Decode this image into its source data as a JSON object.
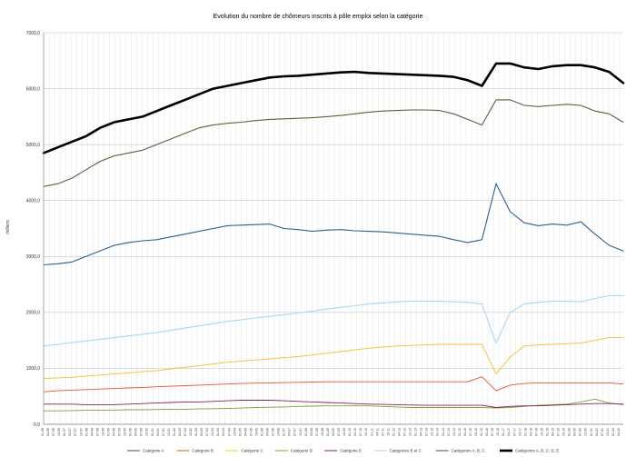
{
  "chart_data": {
    "type": "line",
    "title": "Evolution du nombre de chômeurs inscrits à pôle emploi selon la catégorie",
    "ylabel": "milliers",
    "xlabel": "",
    "ylim": [
      0,
      7000
    ],
    "yticks": [
      "0,0",
      "1000,0",
      "2000,0",
      "3000,0",
      "4000,0",
      "5000,0",
      "6000,0",
      "7000,0"
    ],
    "grid": true,
    "legend_position": "bottom",
    "x_start": "1996-01",
    "x_end": "2022-06",
    "series": [
      {
        "name": "Catégorie A",
        "color": "#2c5e91",
        "width": 1.1,
        "values": [
          2850,
          2870,
          2900,
          3000,
          3100,
          3200,
          3250,
          3280,
          3300,
          3350,
          3400,
          3450,
          3500,
          3550,
          3560,
          3570,
          3580,
          3500,
          3480,
          3450,
          3470,
          3480,
          3460,
          3450,
          3440,
          3420,
          3400,
          3380,
          3360,
          3300,
          3250,
          3300,
          4300,
          3800,
          3600,
          3550,
          3580,
          3560,
          3620,
          3400,
          3200,
          3100
        ]
      },
      {
        "name": "Catégorie B",
        "color": "#e8542a",
        "width": 0.9,
        "values": [
          580,
          600,
          610,
          620,
          630,
          640,
          650,
          660,
          670,
          680,
          690,
          700,
          710,
          720,
          730,
          735,
          740,
          745,
          750,
          755,
          760,
          760,
          760,
          760,
          760,
          760,
          760,
          760,
          760,
          760,
          760,
          850,
          600,
          700,
          730,
          740,
          740,
          740,
          740,
          740,
          740,
          720
        ]
      },
      {
        "name": "Catégorie C",
        "color": "#f2c12e",
        "width": 0.9,
        "values": [
          820,
          830,
          840,
          860,
          880,
          900,
          920,
          940,
          960,
          990,
          1020,
          1050,
          1080,
          1110,
          1130,
          1150,
          1170,
          1190,
          1210,
          1240,
          1270,
          1300,
          1330,
          1360,
          1380,
          1400,
          1410,
          1420,
          1430,
          1430,
          1430,
          1430,
          900,
          1200,
          1400,
          1420,
          1430,
          1440,
          1450,
          1500,
          1550,
          1550
        ]
      },
      {
        "name": "Catégorie D",
        "color": "#7aa33a",
        "width": 0.9,
        "values": [
          240,
          240,
          245,
          250,
          250,
          255,
          260,
          260,
          265,
          270,
          270,
          275,
          280,
          285,
          290,
          300,
          305,
          310,
          320,
          325,
          330,
          330,
          330,
          330,
          320,
          310,
          300,
          300,
          300,
          300,
          300,
          300,
          290,
          300,
          320,
          340,
          350,
          360,
          400,
          450,
          380,
          350
        ]
      },
      {
        "name": "Catégorie E",
        "color": "#8b2252",
        "width": 0.9,
        "values": [
          360,
          360,
          360,
          350,
          350,
          350,
          360,
          370,
          380,
          390,
          400,
          400,
          410,
          420,
          430,
          430,
          430,
          420,
          410,
          400,
          390,
          380,
          370,
          360,
          355,
          350,
          345,
          340,
          340,
          340,
          340,
          340,
          300,
          320,
          330,
          330,
          340,
          350,
          360,
          370,
          370,
          360
        ]
      },
      {
        "name": "Catégories B et C",
        "color": "#a8d8f0",
        "width": 1.1,
        "values": [
          1400,
          1430,
          1460,
          1490,
          1520,
          1550,
          1580,
          1610,
          1640,
          1680,
          1720,
          1760,
          1800,
          1840,
          1870,
          1900,
          1930,
          1960,
          1990,
          2020,
          2060,
          2090,
          2120,
          2150,
          2170,
          2190,
          2200,
          2200,
          2200,
          2190,
          2180,
          2150,
          1450,
          2000,
          2150,
          2180,
          2200,
          2200,
          2190,
          2250,
          2300,
          2300
        ]
      },
      {
        "name": "Catégories A, B, C",
        "color": "#56613a",
        "width": 1.1,
        "values": [
          4250,
          4300,
          4400,
          4550,
          4700,
          4800,
          4850,
          4900,
          5000,
          5100,
          5200,
          5300,
          5350,
          5380,
          5400,
          5430,
          5450,
          5460,
          5470,
          5480,
          5500,
          5520,
          5550,
          5580,
          5600,
          5610,
          5620,
          5620,
          5610,
          5550,
          5450,
          5350,
          5800,
          5800,
          5700,
          5680,
          5700,
          5720,
          5700,
          5600,
          5550,
          5400
        ]
      },
      {
        "name": "Catégories A, B, C, D, E",
        "color": "#000000",
        "width": 2.6,
        "values": [
          4850,
          4950,
          5050,
          5150,
          5300,
          5400,
          5450,
          5500,
          5600,
          5700,
          5800,
          5900,
          6000,
          6050,
          6100,
          6150,
          6200,
          6220,
          6230,
          6250,
          6270,
          6290,
          6300,
          6280,
          6270,
          6260,
          6250,
          6240,
          6230,
          6210,
          6150,
          6050,
          6450,
          6450,
          6380,
          6350,
          6400,
          6420,
          6420,
          6380,
          6300,
          6100
        ]
      }
    ]
  }
}
